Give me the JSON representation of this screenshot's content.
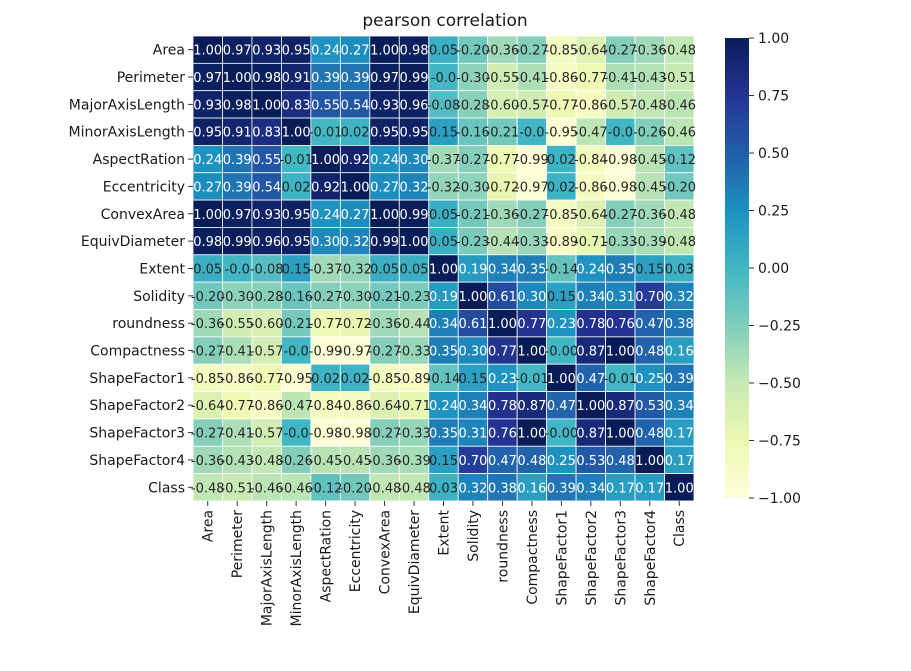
{
  "chart_data": {
    "type": "heatmap",
    "title": "pearson correlation",
    "variables": [
      "Area",
      "Perimeter",
      "MajorAxisLength",
      "MinorAxisLength",
      "AspectRation",
      "Eccentricity",
      "ConvexArea",
      "EquivDiameter",
      "Extent",
      "Solidity",
      "roundness",
      "Compactness",
      "ShapeFactor1",
      "ShapeFactor2",
      "ShapeFactor3",
      "ShapeFactor4",
      "Class"
    ],
    "cell_labels": [
      [
        "1.00",
        "0.97",
        "0.93",
        "0.95",
        "0.24",
        "0.27",
        "1.00",
        "0.98",
        "0.05",
        "-0.20",
        "-0.36",
        "-0.27",
        "-0.85",
        "-0.64",
        "-0.27",
        "-0.36",
        "-0.48"
      ],
      [
        "0.97",
        "1.00",
        "0.98",
        "0.91",
        "0.39",
        "0.39",
        "0.97",
        "0.99",
        "-0.0",
        "-0.30",
        "-0.55",
        "-0.41",
        "-0.86",
        "-0.77",
        "-0.41",
        "-0.43",
        "-0.51"
      ],
      [
        "0.93",
        "0.98",
        "1.00",
        "0.83",
        "0.55",
        "0.54",
        "0.93",
        "0.96",
        "-0.08",
        "-0.28",
        "-0.60",
        "-0.57",
        "-0.77",
        "-0.86",
        "-0.57",
        "-0.48",
        "-0.46"
      ],
      [
        "0.95",
        "0.91",
        "0.83",
        "1.00",
        "-0.01",
        "0.02",
        "0.95",
        "0.95",
        "0.15",
        "-0.16",
        "-0.21",
        "-0.0",
        "-0.95",
        "-0.47",
        "-0.0",
        "-0.26",
        "-0.46"
      ],
      [
        "0.24",
        "0.39",
        "0.55",
        "-0.01",
        "1.00",
        "0.92",
        "0.24",
        "0.30",
        "-0.37",
        "-0.27",
        "-0.77",
        "-0.99",
        "0.02",
        "-0.84",
        "-0.98",
        "-0.45",
        "-0.12"
      ],
      [
        "0.27",
        "0.39",
        "0.54",
        "0.02",
        "0.92",
        "1.00",
        "0.27",
        "0.32",
        "-0.32",
        "-0.30",
        "-0.72",
        "-0.97",
        "0.02",
        "-0.86",
        "-0.98",
        "-0.45",
        "-0.20"
      ],
      [
        "1.00",
        "0.97",
        "0.93",
        "0.95",
        "0.24",
        "0.27",
        "1.00",
        "0.99",
        "0.05",
        "-0.21",
        "-0.36",
        "-0.27",
        "-0.85",
        "-0.64",
        "-0.27",
        "-0.36",
        "-0.48"
      ],
      [
        "0.98",
        "0.99",
        "0.96",
        "0.95",
        "0.30",
        "0.32",
        "0.99",
        "1.00",
        "0.05",
        "-0.23",
        "-0.44",
        "-0.33",
        "-0.89",
        "-0.71",
        "-0.33",
        "-0.39",
        "-0.48"
      ],
      [
        "0.05",
        "-0.0",
        "-0.08",
        "0.15",
        "-0.37",
        "-0.32",
        "0.05",
        "0.05",
        "1.00",
        "0.19",
        "0.34",
        "0.35",
        "-0.14",
        "0.24",
        "0.35",
        "0.15",
        "0.03"
      ],
      [
        "-0.20",
        "-0.30",
        "-0.28",
        "-0.16",
        "-0.27",
        "-0.30",
        "-0.21",
        "-0.23",
        "0.19",
        "1.00",
        "0.61",
        "0.30",
        "0.15",
        "0.34",
        "0.31",
        "0.70",
        "0.32"
      ],
      [
        "-0.36",
        "-0.55",
        "-0.60",
        "-0.21",
        "-0.77",
        "-0.72",
        "-0.36",
        "-0.44",
        "0.34",
        "0.61",
        "1.00",
        "0.77",
        "0.23",
        "0.78",
        "0.76",
        "0.47",
        "0.38"
      ],
      [
        "-0.27",
        "-0.41",
        "-0.57",
        "-0.0",
        "-0.99",
        "-0.97",
        "-0.27",
        "-0.33",
        "0.35",
        "0.30",
        "0.77",
        "1.00",
        "-0.00",
        "0.87",
        "1.00",
        "0.48",
        "0.16"
      ],
      [
        "-0.85",
        "-0.86",
        "-0.77",
        "-0.95",
        "0.02",
        "0.02",
        "-0.85",
        "-0.89",
        "-0.14",
        "0.15",
        "0.23",
        "-0.01",
        "1.00",
        "0.47",
        "-0.01",
        "0.25",
        "0.39"
      ],
      [
        "-0.64",
        "-0.77",
        "-0.86",
        "-0.47",
        "-0.84",
        "-0.86",
        "-0.64",
        "-0.71",
        "0.24",
        "0.34",
        "0.78",
        "0.87",
        "0.47",
        "1.00",
        "0.87",
        "0.53",
        "0.34"
      ],
      [
        "-0.27",
        "-0.41",
        "-0.57",
        "-0.0",
        "-0.98",
        "-0.98",
        "-0.27",
        "-0.33",
        "0.35",
        "0.31",
        "0.76",
        "1.00",
        "-0.00",
        "0.87",
        "1.00",
        "0.48",
        "0.17"
      ],
      [
        "-0.36",
        "-0.43",
        "-0.48",
        "-0.26",
        "-0.45",
        "-0.45",
        "-0.36",
        "-0.39",
        "0.15",
        "0.70",
        "0.47",
        "0.48",
        "0.25",
        "0.53",
        "0.48",
        "1.00",
        "0.17"
      ],
      [
        "-0.48",
        "-0.51",
        "-0.46",
        "-0.46",
        "-0.12",
        "-0.20",
        "-0.48",
        "-0.48",
        "0.03",
        "0.32",
        "0.38",
        "0.16",
        "0.39",
        "0.34",
        "0.17",
        "0.17",
        "1.00"
      ]
    ],
    "colormap": "YlGnBu",
    "colormap_stops": [
      "#ffffd9",
      "#edf8b1",
      "#c7e9b4",
      "#7fcdbb",
      "#41b6c4",
      "#1d91c0",
      "#225ea8",
      "#253494",
      "#081d58"
    ],
    "vmin": -1.0,
    "vmax": 1.0,
    "colorbar_ticks": [
      "1.00",
      "0.75",
      "0.50",
      "0.25",
      "0.00",
      "−0.25",
      "−0.50",
      "−0.75",
      "−1.00"
    ],
    "grid": true,
    "cell_separator_color": "#ffffff"
  }
}
